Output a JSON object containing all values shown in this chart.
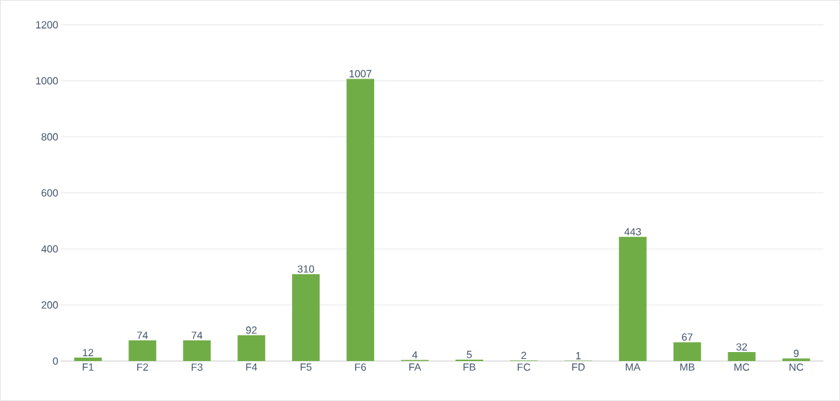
{
  "chart_data": {
    "type": "bar",
    "categories": [
      "F1",
      "F2",
      "F3",
      "F4",
      "F5",
      "F6",
      "FA",
      "FB",
      "FC",
      "FD",
      "MA",
      "MB",
      "MC",
      "NC"
    ],
    "values": [
      12,
      74,
      74,
      92,
      310,
      1007,
      4,
      5,
      2,
      1,
      443,
      67,
      32,
      9
    ],
    "color": "#70ad47",
    "ylim": [
      0,
      1200
    ],
    "yticks": [
      0,
      200,
      400,
      600,
      800,
      1000,
      1200
    ],
    "grid": "y",
    "data_labels": true
  }
}
